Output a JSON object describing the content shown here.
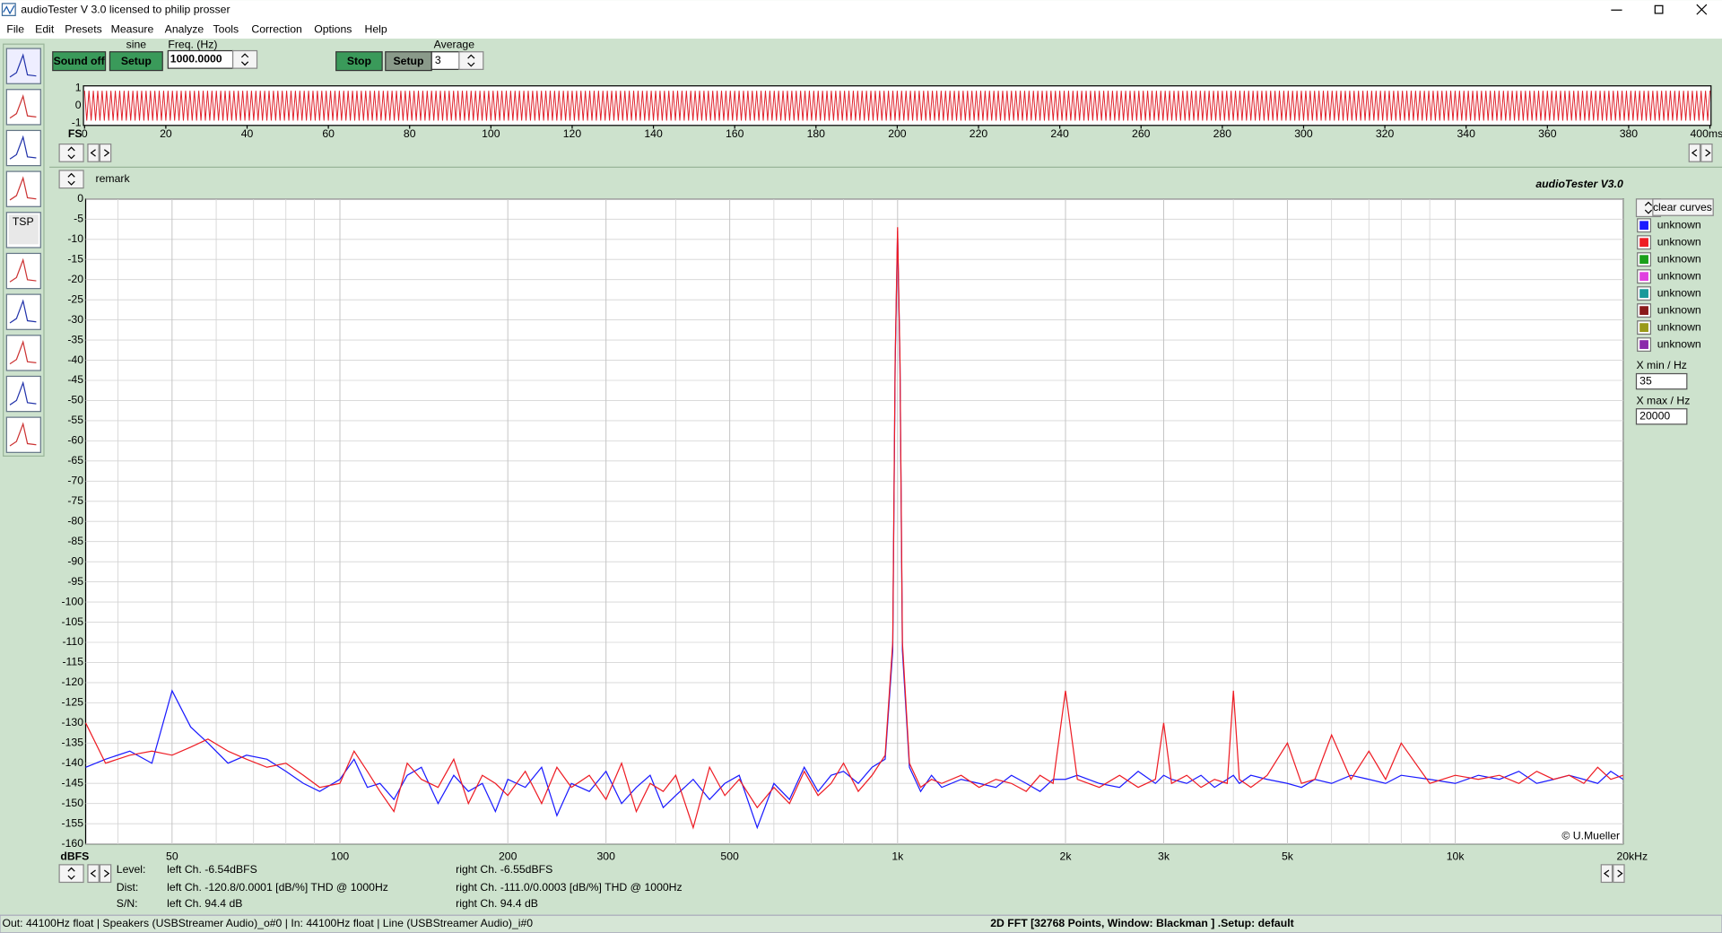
{
  "window": {
    "title": "audioTester  V 3.0   licensed to philip prosser"
  },
  "menu": [
    "File",
    "Edit",
    "Presets",
    "Measure",
    "Analyze",
    "Tools",
    "Correction",
    "Options",
    "Help"
  ],
  "toolbar": {
    "tsp": "TSP"
  },
  "controls": {
    "sound_off": "Sound off",
    "sine": "sine",
    "setup1": "Setup",
    "freq_label": "Freq. (Hz)",
    "freq_value": "1000.0000",
    "stop": "Stop",
    "setup2": "Setup",
    "average_label": "Average",
    "average_value": "3"
  },
  "scope": {
    "yticks": [
      1,
      0,
      -1
    ],
    "ylim": [
      -1,
      1
    ],
    "xlim": [
      0,
      400
    ],
    "fs_label": "FS",
    "color": "#e0202a",
    "xticks": [
      0,
      20,
      40,
      60,
      80,
      100,
      120,
      140,
      160,
      180,
      200,
      220,
      240,
      260,
      280,
      300,
      320,
      340,
      360,
      380,
      {
        "value": 400,
        "label": "400ms"
      }
    ]
  },
  "fft": {
    "type": "line",
    "remark": "remark",
    "brand": "audioTester  V3.0",
    "y_label": "dBFS",
    "credit": "© U.Mueller",
    "log_x": true,
    "grid": true,
    "xlim": [
      35,
      20000
    ],
    "ylim": [
      -160,
      0
    ],
    "yticks": [
      0,
      -5,
      -10,
      -15,
      -20,
      -25,
      -30,
      -35,
      -40,
      -45,
      -50,
      -55,
      -60,
      -65,
      -70,
      -75,
      -80,
      -85,
      -90,
      -95,
      -100,
      -105,
      -110,
      -115,
      -120,
      -125,
      -130,
      -135,
      -140,
      -145,
      -150,
      -155,
      -160
    ],
    "xticks": [
      50,
      100,
      200,
      300,
      500,
      {
        "value": 1000,
        "label": "1k"
      },
      {
        "value": 2000,
        "label": "2k"
      },
      {
        "value": 3000,
        "label": "3k"
      },
      {
        "value": 5000,
        "label": "5k"
      },
      {
        "value": 10000,
        "label": "10k"
      },
      {
        "value": 20000,
        "label": "20kHz"
      }
    ],
    "xgrid_minor": [
      40,
      60,
      70,
      80,
      90,
      400,
      600,
      700,
      800,
      900,
      4000,
      6000,
      7000,
      8000,
      9000
    ],
    "x": [
      35,
      38,
      42,
      46,
      50,
      54,
      58,
      63,
      68,
      74,
      80,
      86,
      92,
      100,
      106,
      112,
      118,
      125,
      132,
      140,
      150,
      160,
      170,
      180,
      190,
      200,
      215,
      230,
      245,
      260,
      280,
      300,
      320,
      340,
      360,
      380,
      400,
      430,
      460,
      490,
      520,
      560,
      600,
      640,
      680,
      720,
      760,
      800,
      850,
      900,
      950,
      980,
      990,
      1000,
      1010,
      1020,
      1050,
      1100,
      1150,
      1200,
      1300,
      1400,
      1500,
      1600,
      1700,
      1800,
      1900,
      2000,
      2100,
      2300,
      2500,
      2700,
      2900,
      3000,
      3100,
      3300,
      3500,
      3700,
      3900,
      4000,
      4100,
      4300,
      4600,
      5000,
      5300,
      5600,
      6000,
      6500,
      7000,
      7500,
      8000,
      9000,
      10000,
      11000,
      12000,
      13000,
      14000,
      15000,
      16000,
      17000,
      18000,
      19000,
      20000
    ],
    "series": [
      {
        "name": "left Ch.",
        "color": "#1a1aff",
        "values": [
          -141,
          -139,
          -137,
          -140,
          -122,
          -131,
          -135,
          -140,
          -138,
          -139,
          -142,
          -145,
          -147,
          -144,
          -139,
          -146,
          -145,
          -149,
          -143,
          -141,
          -150,
          -143,
          -147,
          -145,
          -152,
          -144,
          -146,
          -141,
          -153,
          -145,
          -147,
          -142,
          -150,
          -146,
          -143,
          -151,
          -148,
          -144,
          -149,
          -145,
          -143,
          -156,
          -145,
          -149,
          -141,
          -147,
          -143,
          -142,
          -145,
          -141,
          -139,
          -112,
          -41,
          -8,
          -41,
          -112,
          -141,
          -147,
          -143,
          -146,
          -144,
          -145,
          -146,
          -143,
          -145,
          -147,
          -144,
          -144,
          -143,
          -145,
          -146,
          -142,
          -145,
          -143,
          -144,
          -145,
          -143,
          -146,
          -144,
          -143,
          -145,
          -143,
          -144,
          -145,
          -146,
          -144,
          -145,
          -143,
          -144,
          -145,
          -143,
          -144,
          -145,
          -143,
          -144,
          -142,
          -145,
          -144,
          -143,
          -144,
          -145,
          -142,
          -144
        ]
      },
      {
        "name": "right Ch.",
        "color": "#ee1c24",
        "values": [
          -130,
          -140,
          -138,
          -137,
          -138,
          -136,
          -134,
          -137,
          -139,
          -141,
          -140,
          -143,
          -146,
          -145,
          -137,
          -142,
          -147,
          -152,
          -140,
          -144,
          -146,
          -139,
          -150,
          -143,
          -145,
          -148,
          -142,
          -150,
          -141,
          -146,
          -143,
          -149,
          -140,
          -152,
          -145,
          -147,
          -143,
          -156,
          -141,
          -148,
          -144,
          -151,
          -146,
          -150,
          -142,
          -148,
          -145,
          -140,
          -147,
          -143,
          -138,
          -110,
          -40,
          -7,
          -40,
          -110,
          -140,
          -146,
          -144,
          -145,
          -143,
          -146,
          -144,
          -145,
          -147,
          -143,
          -145,
          -122,
          -144,
          -146,
          -143,
          -146,
          -144,
          -130,
          -145,
          -143,
          -146,
          -144,
          -145,
          -122,
          -144,
          -146,
          -143,
          -135,
          -145,
          -144,
          -133,
          -144,
          -137,
          -144,
          -135,
          -145,
          -143,
          -144,
          -143,
          -145,
          -142,
          -144,
          -143,
          -145,
          -141,
          -144,
          -143
        ]
      }
    ]
  },
  "legend": {
    "clear": "clear curves",
    "entries": [
      {
        "name": "unknown",
        "color": "#1a1aff"
      },
      {
        "name": "unknown",
        "color": "#ee1c24"
      },
      {
        "name": "unknown",
        "color": "#1aa01a"
      },
      {
        "name": "unknown",
        "color": "#e040e0"
      },
      {
        "name": "unknown",
        "color": "#1a9a9a"
      },
      {
        "name": "unknown",
        "color": "#8a1a1a"
      },
      {
        "name": "unknown",
        "color": "#9a9a1a"
      },
      {
        "name": "unknown",
        "color": "#8a2aaa"
      }
    ],
    "xmin_label": "X min / Hz",
    "xmin": "35",
    "xmax_label": "X max / Hz",
    "xmax": "20000"
  },
  "info": {
    "level": "Level:",
    "dist": "Dist:",
    "sn": "S/N:",
    "left_level": "left Ch. -6.54dBFS",
    "left_dist": "left Ch. -120.8/0.0001 [dB/%] THD @ 1000Hz",
    "left_sn": "left Ch. 94.4 dB",
    "right_level": "right Ch. -6.55dBFS",
    "right_dist": "right Ch. -111.0/0.0003 [dB/%] THD @ 1000Hz",
    "right_sn": "right Ch. 94.4 dB"
  },
  "status": {
    "left": "Out: 44100Hz float  | Speakers (USBStreamer Audio)_o#0  | In: 44100Hz float  | Line (USBStreamer Audio)_i#0",
    "center": "2D FFT [32768 Points, Window: Blackman ]  .Setup:  default"
  }
}
